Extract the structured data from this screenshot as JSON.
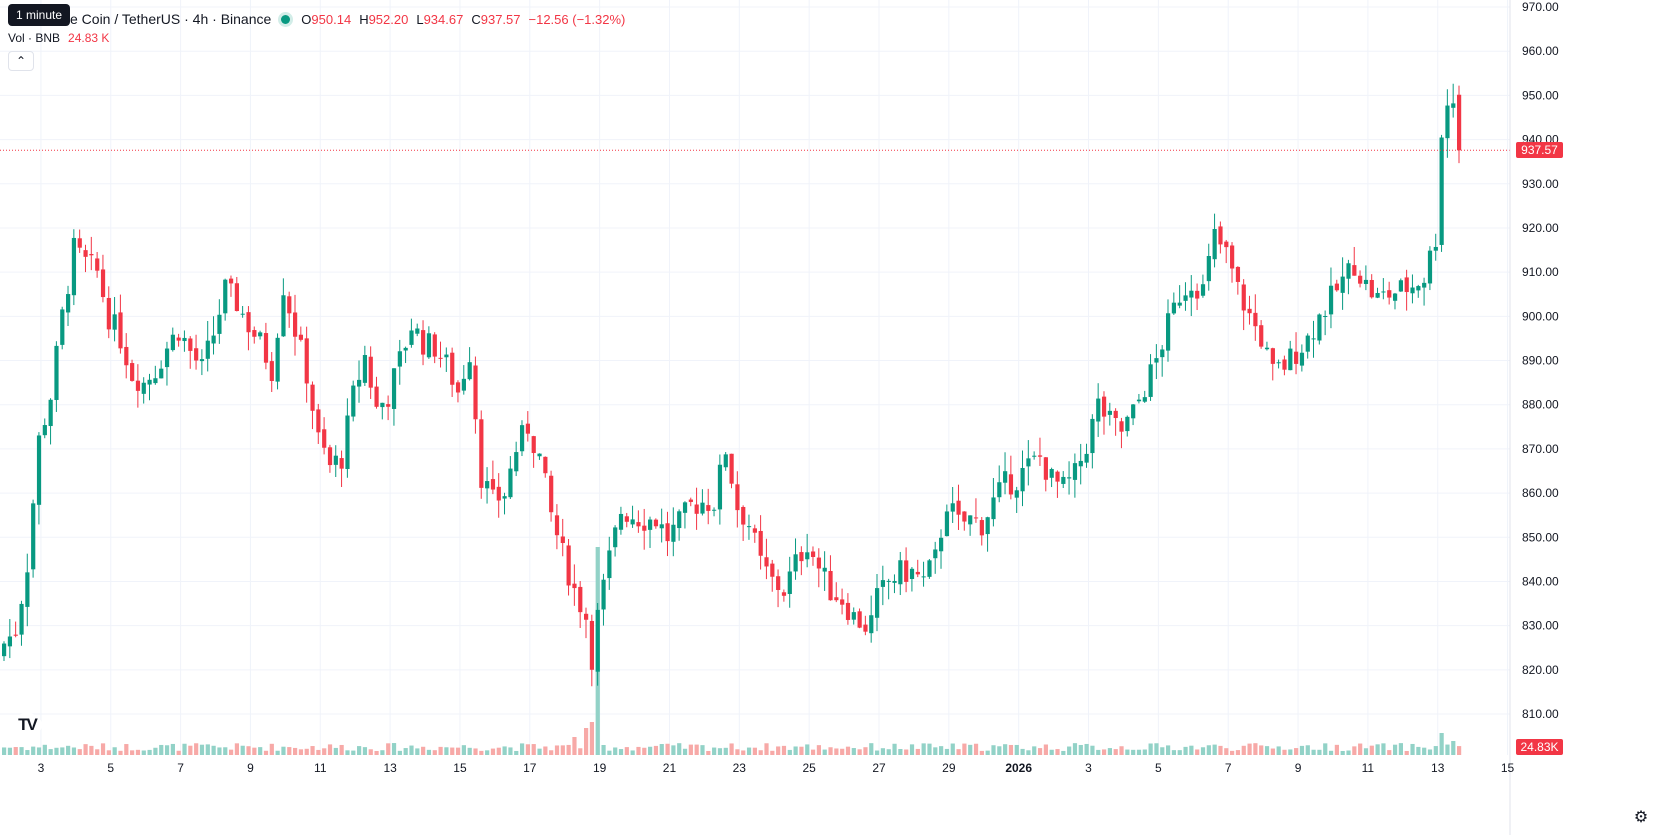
{
  "legend": {
    "symbol": "e Coin / TetherUS · 4h · Binance",
    "o_key": "O",
    "o_val": "950.14",
    "h_key": "H",
    "h_val": "952.20",
    "l_key": "L",
    "l_val": "934.67",
    "c_key": "C",
    "c_val": "937.57",
    "change": "−12.56 (−1.32%)"
  },
  "tooltip": "1 minute",
  "volume": {
    "label": "Vol · BNB",
    "value": "24.83 K"
  },
  "collapse_icon": "chevron-up-icon",
  "last_price_tag": "937.57",
  "volume_tag": "24.83K",
  "logo_text": "TV",
  "settings_icon": "gear-icon",
  "colors": {
    "up": "#089981",
    "down": "#f23645",
    "up_vol": "#92d2c7",
    "down_vol": "#f7a9a7",
    "grid": "#f0f3fa"
  },
  "chart_data": {
    "type": "candlestick",
    "ylim": [
      805,
      972
    ],
    "y_ticks": [
      "810.00",
      "820.00",
      "830.00",
      "840.00",
      "850.00",
      "860.00",
      "870.00",
      "880.00",
      "890.00",
      "900.00",
      "910.00",
      "920.00",
      "930.00",
      "940.00",
      "950.00",
      "960.00",
      "970.00"
    ],
    "x_ticks": [
      {
        "label": "3",
        "i": 6
      },
      {
        "label": "5",
        "i": 18
      },
      {
        "label": "7",
        "i": 30
      },
      {
        "label": "9",
        "i": 42
      },
      {
        "label": "11",
        "i": 54
      },
      {
        "label": "13",
        "i": 66
      },
      {
        "label": "15",
        "i": 78
      },
      {
        "label": "17",
        "i": 90
      },
      {
        "label": "19",
        "i": 102
      },
      {
        "label": "21",
        "i": 114
      },
      {
        "label": "23",
        "i": 126
      },
      {
        "label": "25",
        "i": 138
      },
      {
        "label": "27",
        "i": 150
      },
      {
        "label": "29",
        "i": 162
      },
      {
        "label": "2026",
        "i": 174,
        "bold": true
      },
      {
        "label": "3",
        "i": 186
      },
      {
        "label": "5",
        "i": 198
      },
      {
        "label": "7",
        "i": 210
      },
      {
        "label": "9",
        "i": 222
      },
      {
        "label": "11",
        "i": 234
      },
      {
        "label": "13",
        "i": 246
      },
      {
        "label": "15",
        "i": 258
      }
    ],
    "last_price": 937.57,
    "close_path": [
      [
        0,
        826
      ],
      [
        2,
        829
      ],
      [
        4,
        844
      ],
      [
        6,
        872
      ],
      [
        8,
        882
      ],
      [
        10,
        900
      ],
      [
        12,
        915
      ],
      [
        14,
        912
      ],
      [
        16,
        910
      ],
      [
        18,
        900
      ],
      [
        20,
        895
      ],
      [
        22,
        887
      ],
      [
        24,
        885
      ],
      [
        26,
        888
      ],
      [
        28,
        893
      ],
      [
        30,
        897
      ],
      [
        32,
        892
      ],
      [
        34,
        888
      ],
      [
        36,
        896
      ],
      [
        38,
        906
      ],
      [
        40,
        903
      ],
      [
        42,
        898
      ],
      [
        44,
        894
      ],
      [
        46,
        888
      ],
      [
        48,
        907
      ],
      [
        50,
        897
      ],
      [
        52,
        887
      ],
      [
        54,
        872
      ],
      [
        56,
        866
      ],
      [
        58,
        868
      ],
      [
        60,
        882
      ],
      [
        62,
        891
      ],
      [
        64,
        879
      ],
      [
        66,
        882
      ],
      [
        68,
        890
      ],
      [
        70,
        898
      ],
      [
        72,
        894
      ],
      [
        74,
        893
      ],
      [
        76,
        889
      ],
      [
        78,
        883
      ],
      [
        80,
        892
      ],
      [
        82,
        864
      ],
      [
        84,
        858
      ],
      [
        86,
        860
      ],
      [
        88,
        870
      ],
      [
        90,
        875
      ],
      [
        92,
        868
      ],
      [
        94,
        855
      ],
      [
        96,
        846
      ],
      [
        98,
        838
      ],
      [
        100,
        832
      ],
      [
        101,
        823
      ],
      [
        102,
        832
      ],
      [
        104,
        845
      ],
      [
        106,
        856
      ],
      [
        108,
        855
      ],
      [
        110,
        854
      ],
      [
        112,
        854
      ],
      [
        114,
        850
      ],
      [
        116,
        853
      ],
      [
        118,
        857
      ],
      [
        120,
        858
      ],
      [
        122,
        858
      ],
      [
        124,
        870
      ],
      [
        126,
        857
      ],
      [
        128,
        853
      ],
      [
        130,
        844
      ],
      [
        132,
        840
      ],
      [
        134,
        838
      ],
      [
        136,
        844
      ],
      [
        138,
        849
      ],
      [
        140,
        843
      ],
      [
        142,
        838
      ],
      [
        144,
        836
      ],
      [
        146,
        832
      ],
      [
        148,
        830
      ],
      [
        149,
        831
      ],
      [
        150,
        836
      ],
      [
        152,
        840
      ],
      [
        154,
        842
      ],
      [
        156,
        842
      ],
      [
        158,
        840
      ],
      [
        160,
        845
      ],
      [
        162,
        858
      ],
      [
        164,
        853
      ],
      [
        166,
        854
      ],
      [
        168,
        853
      ],
      [
        170,
        858
      ],
      [
        172,
        862
      ],
      [
        174,
        863
      ],
      [
        176,
        866
      ],
      [
        178,
        868
      ],
      [
        180,
        863
      ],
      [
        182,
        861
      ],
      [
        184,
        864
      ],
      [
        186,
        871
      ],
      [
        188,
        880
      ],
      [
        190,
        876
      ],
      [
        192,
        874
      ],
      [
        194,
        878
      ],
      [
        196,
        884
      ],
      [
        198,
        890
      ],
      [
        200,
        898
      ],
      [
        202,
        905
      ],
      [
        204,
        908
      ],
      [
        206,
        906
      ],
      [
        208,
        918
      ],
      [
        210,
        914
      ],
      [
        212,
        906
      ],
      [
        214,
        900
      ],
      [
        216,
        895
      ],
      [
        218,
        887
      ],
      [
        220,
        889
      ],
      [
        222,
        892
      ],
      [
        224,
        895
      ],
      [
        226,
        900
      ],
      [
        228,
        904
      ],
      [
        230,
        908
      ],
      [
        232,
        912
      ],
      [
        234,
        907
      ],
      [
        236,
        904
      ],
      [
        238,
        905
      ],
      [
        240,
        906
      ],
      [
        242,
        907
      ],
      [
        244,
        909
      ],
      [
        246,
        918
      ],
      [
        247,
        942
      ],
      [
        248,
        948
      ],
      [
        249,
        949
      ],
      [
        250,
        937.57
      ]
    ]
  }
}
